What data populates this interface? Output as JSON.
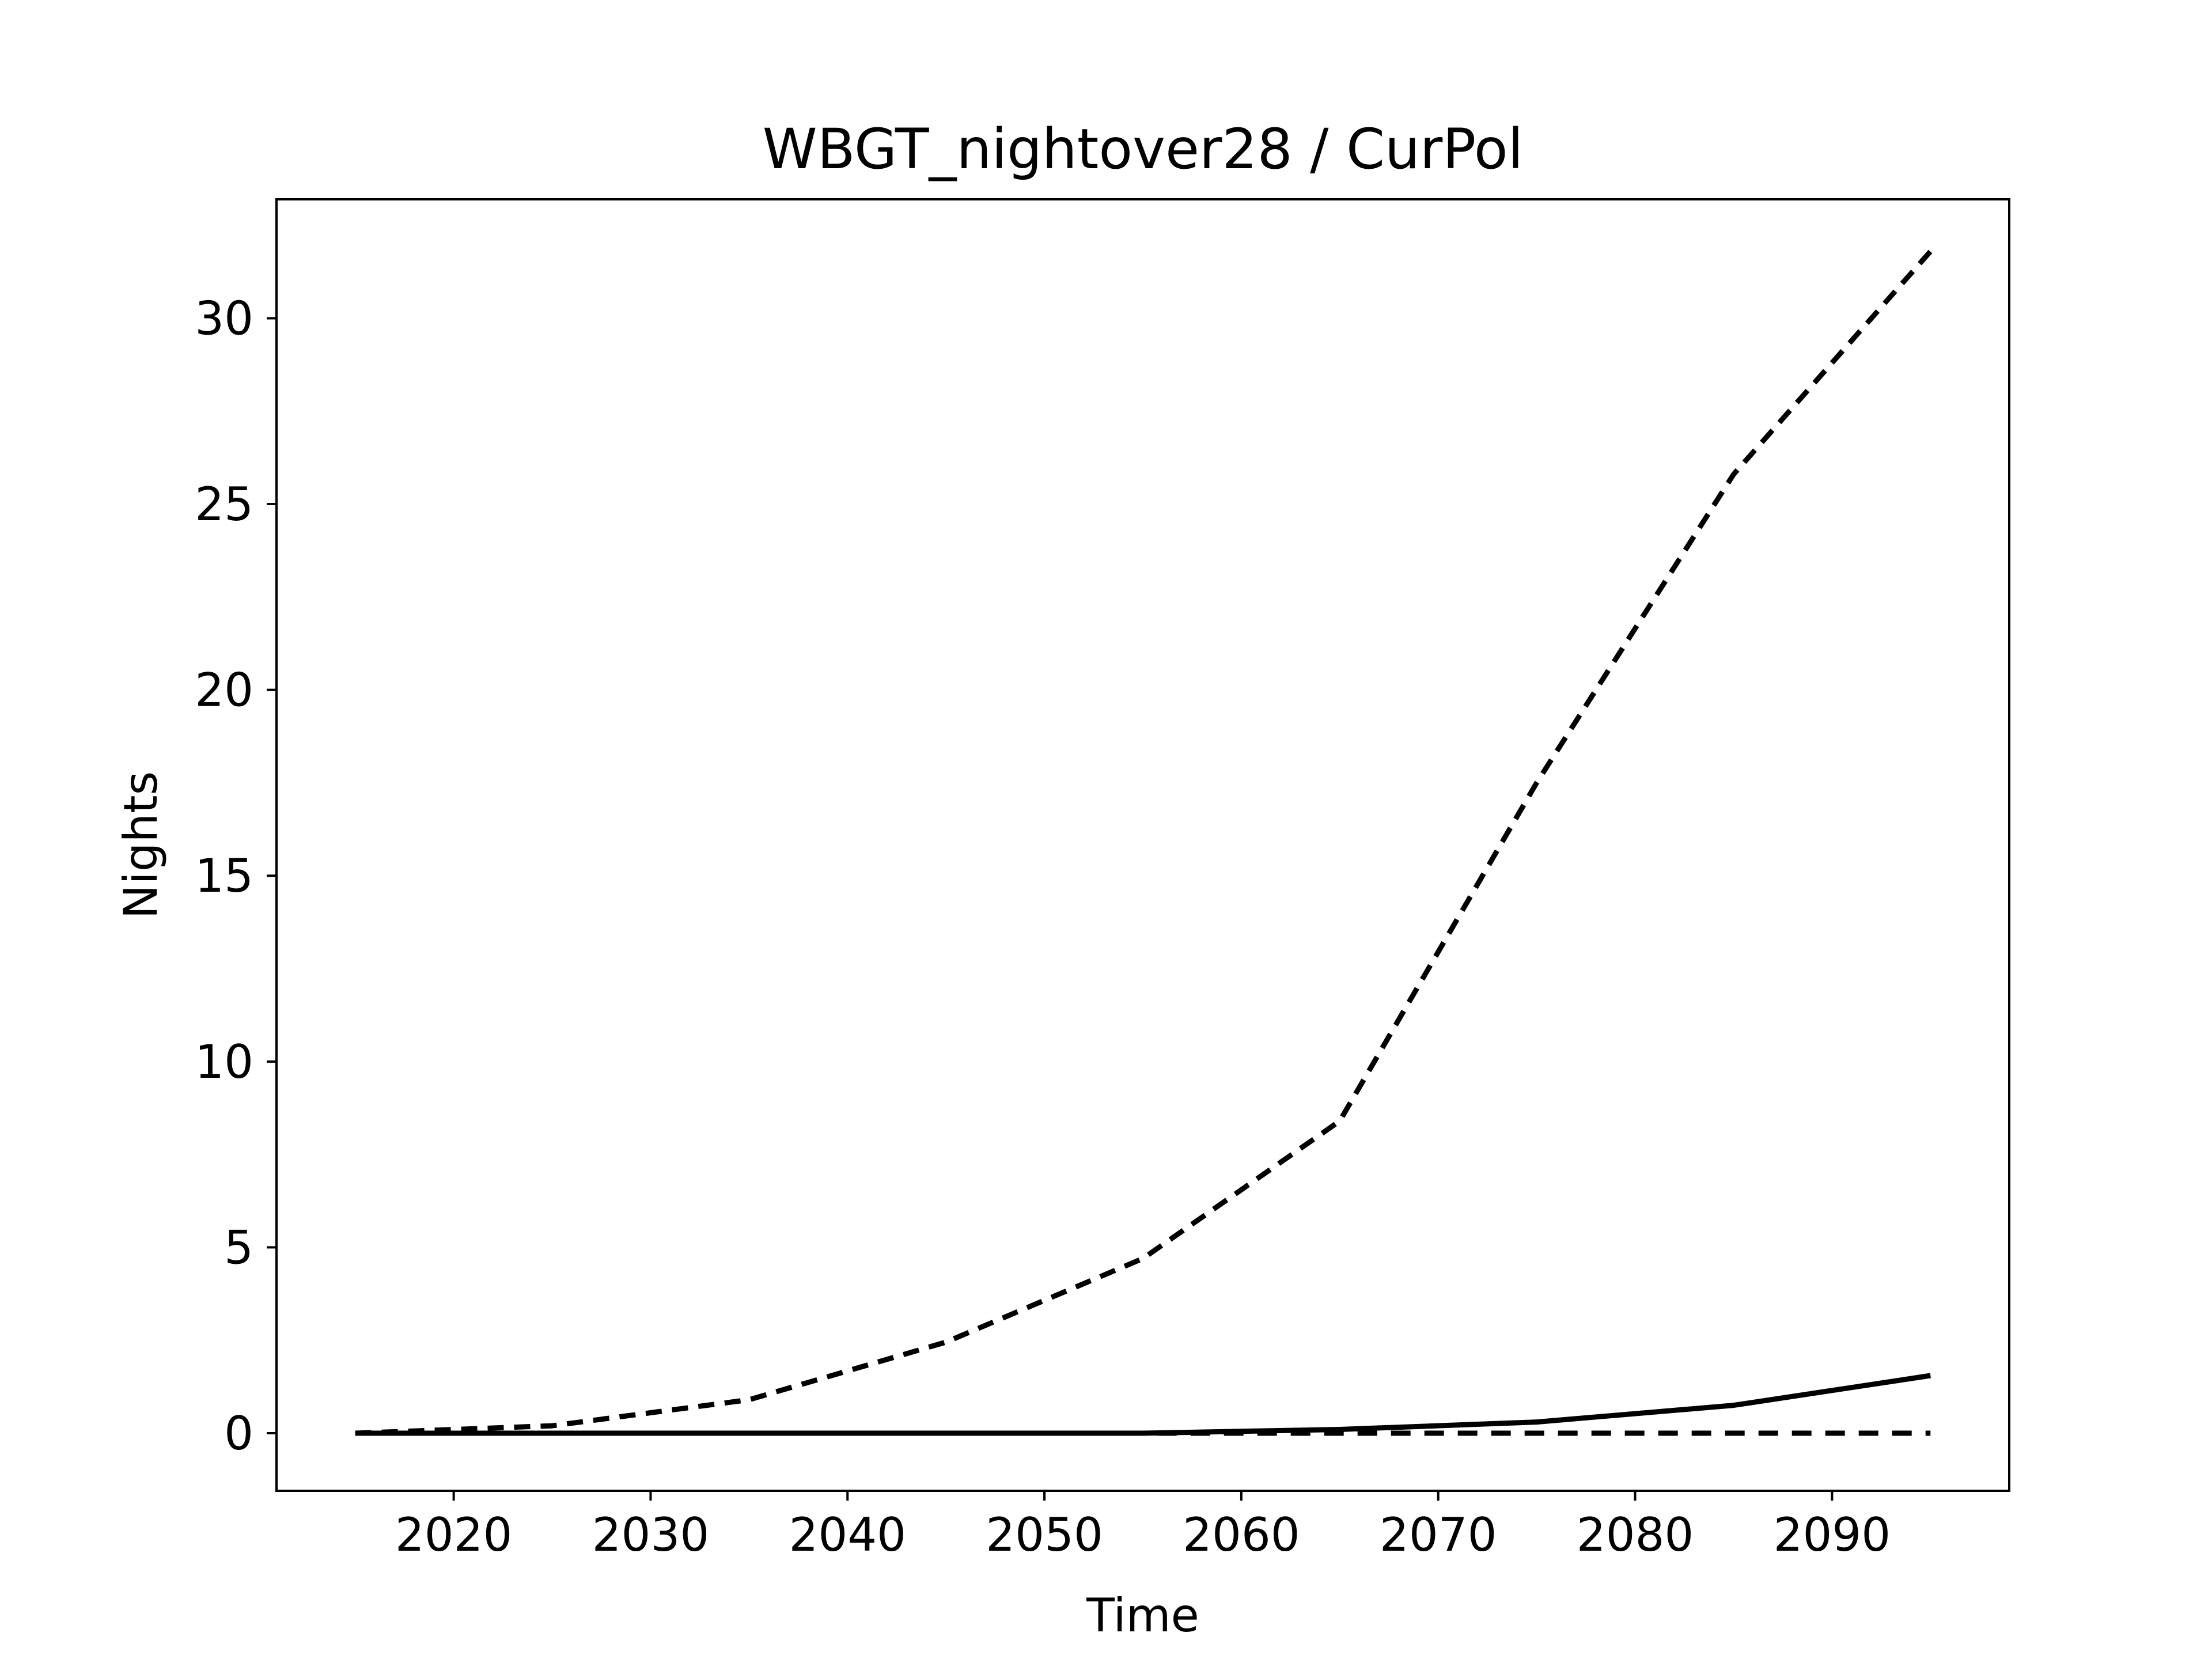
{
  "chart_data": {
    "type": "line",
    "title": "WBGT_nightover28 / CurPol",
    "xlabel": "Time",
    "ylabel": "Nights",
    "xlim": [
      2011,
      2099
    ],
    "ylim": [
      -1.55,
      33.2
    ],
    "xticks": [
      2020,
      2030,
      2040,
      2050,
      2060,
      2070,
      2080,
      2090
    ],
    "yticks": [
      0,
      5,
      10,
      15,
      20,
      25,
      30
    ],
    "x": [
      2015,
      2025,
      2035,
      2045,
      2055,
      2065,
      2075,
      2085,
      2095
    ],
    "series": [
      {
        "style": "median",
        "color": "#000000",
        "values": [
          0.0,
          0.0,
          0.0,
          0.0,
          0.0,
          0.1,
          0.3,
          0.75,
          1.55
        ]
      },
      {
        "style": "upper",
        "color": "#000000",
        "values": [
          0.0,
          0.2,
          0.9,
          2.45,
          4.7,
          8.4,
          17.5,
          25.8,
          31.8
        ]
      },
      {
        "style": "lower",
        "color": "#000000",
        "values": [
          0.0,
          0.0,
          0.0,
          0.0,
          0.0,
          0.0,
          0.0,
          0.0,
          0.0
        ]
      }
    ],
    "grid": false,
    "legend": "none"
  }
}
